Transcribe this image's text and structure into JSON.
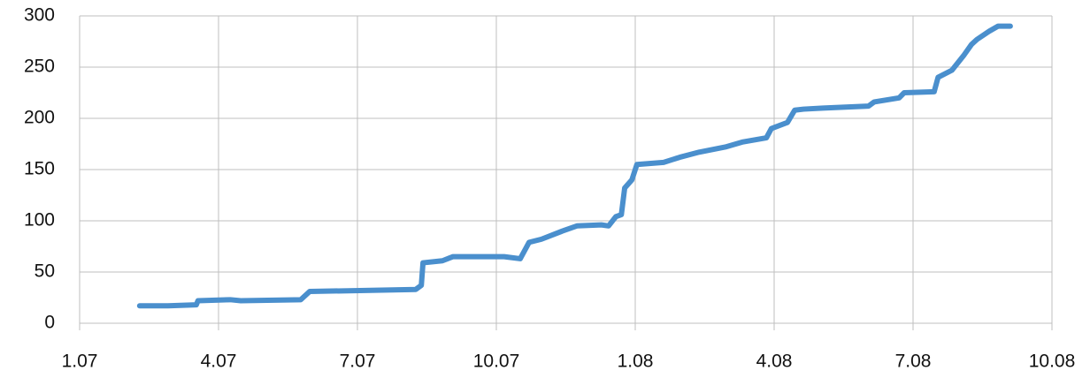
{
  "chart_data": {
    "type": "line",
    "x": [
      2007.108,
      2007.159,
      2007.21,
      2007.213,
      2007.271,
      2007.29,
      2007.398,
      2007.414,
      2007.605,
      2007.615,
      2007.618,
      2007.653,
      2007.672,
      2007.764,
      2007.793,
      2007.809,
      2007.831,
      2007.869,
      2007.895,
      2007.939,
      2007.952,
      2007.965,
      2007.975,
      2007.981,
      2007.994,
      2008.003,
      2008.051,
      2008.08,
      2008.115,
      2008.162,
      2008.194,
      2008.236,
      2008.245,
      2008.274,
      2008.287,
      2008.303,
      2008.338,
      2008.42,
      2008.43,
      2008.475,
      2008.484,
      2008.538,
      2008.545,
      2008.57,
      2008.592,
      2008.605,
      2008.615,
      2008.637,
      2008.653,
      2008.675
    ],
    "series": [
      {
        "color": "#4a8fcd",
        "values": [
          17,
          17,
          18,
          22,
          23,
          22,
          23,
          31,
          33,
          37,
          59,
          61,
          65,
          65,
          63,
          79,
          82,
          90,
          95,
          96,
          95,
          104,
          106,
          132,
          140,
          155,
          157,
          162,
          167,
          172,
          177,
          181,
          190,
          196,
          208,
          209,
          210,
          212,
          216,
          220,
          225,
          226,
          240,
          247,
          262,
          272,
          277,
          285,
          290,
          290
        ]
      }
    ],
    "xlim": [
      2007,
      2008.75
    ],
    "xticks": [
      {
        "value": 2007,
        "label": "1.07"
      },
      {
        "value": 2007.25,
        "label": "4.07"
      },
      {
        "value": 2007.5,
        "label": "7.07"
      },
      {
        "value": 2007.75,
        "label": "10.07"
      },
      {
        "value": 2008,
        "label": "1.08"
      },
      {
        "value": 2008.25,
        "label": "4.08"
      },
      {
        "value": 2008.5,
        "label": "7.08"
      },
      {
        "value": 2008.75,
        "label": "10.08"
      }
    ],
    "ylim": [
      0,
      300
    ],
    "yticks": [
      0,
      50,
      100,
      150,
      200,
      250,
      300
    ],
    "grid": true
  }
}
